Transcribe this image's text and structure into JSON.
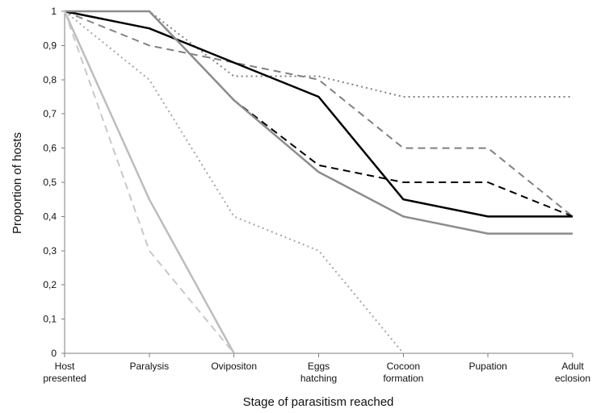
{
  "chart_data": {
    "type": "line",
    "xlabel": "Stage of parasitism reached",
    "ylabel": "Proportion of hosts",
    "ylim": [
      0,
      1
    ],
    "categories": [
      "Host presented",
      "Paralysis",
      "Ovipositon",
      "Eggs hatching",
      "Cocoon formation",
      "Pupation",
      "Adult eclosion"
    ],
    "yticks": [
      "0",
      "0,1",
      "0,2",
      "0,3",
      "0,4",
      "0,5",
      "0,6",
      "0,7",
      "0,8",
      "0,9",
      "1"
    ],
    "grid": false,
    "legend": "none",
    "series": [
      {
        "values": [
          1,
          1,
          0.81,
          0.81,
          0.75,
          0.75,
          0.75
        ],
        "color": "#808080",
        "style": "dotted"
      },
      {
        "values": [
          1,
          0.9,
          0.85,
          0.8,
          0.6,
          0.6,
          0.4
        ],
        "color": "#808080",
        "style": "dashed"
      },
      {
        "values": [
          1,
          0.95,
          0.85,
          0.75,
          0.45,
          0.4,
          0.4
        ],
        "color": "#000000",
        "style": "solid"
      },
      {
        "values": [
          1,
          1,
          0.74,
          0.55,
          0.5,
          0.5,
          0.4
        ],
        "color": "#000000",
        "style": "dashed"
      },
      {
        "values": [
          1,
          1,
          0.74,
          0.53,
          0.4,
          0.35,
          0.35
        ],
        "color": "#8c8c8c",
        "style": "solid"
      },
      {
        "values": [
          1,
          0.8,
          0.4,
          0.3,
          0,
          null,
          null
        ],
        "color": "#a6a6a6",
        "style": "dotted"
      },
      {
        "values": [
          1,
          0.45,
          0,
          null,
          null,
          null,
          null
        ],
        "color": "#bdbdbd",
        "style": "solid"
      },
      {
        "values": [
          1,
          0.3,
          0,
          null,
          null,
          null,
          null
        ],
        "color": "#c8c8c8",
        "style": "dashed"
      }
    ]
  }
}
